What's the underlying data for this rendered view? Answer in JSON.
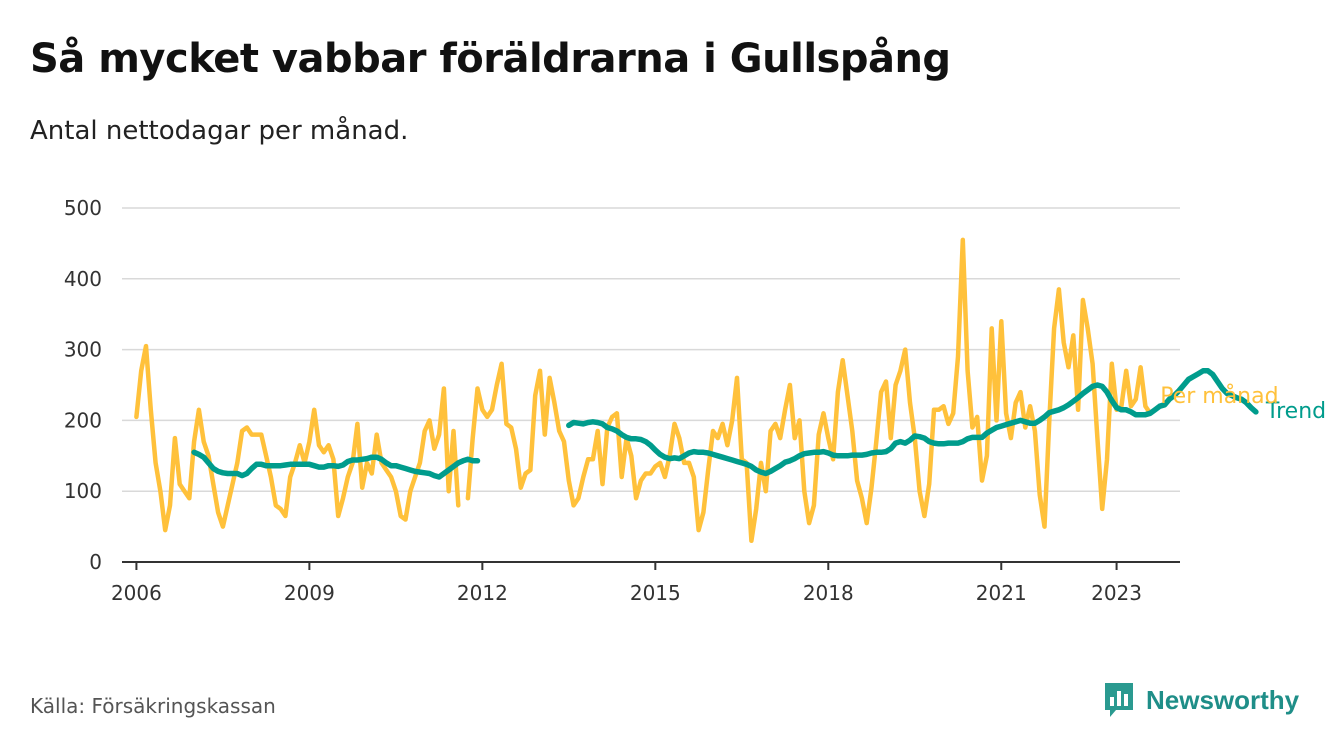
{
  "header": {
    "title": "Så mycket vabbar föräldrarna i Gullspång",
    "subtitle": "Antal nettodagar per månad."
  },
  "footer": {
    "source": "Källa: Försäkringskassan",
    "brand": "Newsworthy",
    "brand_icon": "newsworthy-chart-logo-icon"
  },
  "colors": {
    "per_month": "#ffc13b",
    "trend": "#009c8c",
    "grid": "#d9d9d9",
    "axis": "#333333",
    "brand": "#1f8e88"
  },
  "chart_data": {
    "type": "line",
    "title": "Så mycket vabbar föräldrarna i Gullspång",
    "subtitle": "Antal nettodagar per månad.",
    "xlabel": "",
    "ylabel": "",
    "xlim": [
      2005.75,
      2024.1
    ],
    "ylim": [
      0,
      500
    ],
    "y_ticks": [
      0,
      100,
      200,
      300,
      400,
      500
    ],
    "x_ticks": [
      2006,
      2009,
      2012,
      2015,
      2018,
      2021,
      2023
    ],
    "x_tick_labels": [
      "2006",
      "2009",
      "2012",
      "2015",
      "2018",
      "2021",
      "2023"
    ],
    "grid": true,
    "legend_placement": "inline-right",
    "series": [
      {
        "name": "Per månad",
        "color": "#ffc13b",
        "x_start": 2006.0,
        "step_months": 1,
        "values": [
          205,
          270,
          305,
          215,
          140,
          100,
          45,
          80,
          175,
          110,
          100,
          90,
          170,
          215,
          170,
          150,
          110,
          70,
          50,
          80,
          110,
          140,
          185,
          190,
          180,
          180,
          180,
          150,
          120,
          80,
          75,
          65,
          120,
          140,
          165,
          140,
          170,
          215,
          165,
          155,
          165,
          145,
          65,
          90,
          120,
          140,
          195,
          105,
          140,
          125,
          180,
          140,
          130,
          120,
          100,
          65,
          60,
          100,
          120,
          140,
          185,
          200,
          160,
          180,
          245,
          100,
          185,
          80,
          null,
          90,
          175,
          245,
          215,
          205,
          215,
          250,
          280,
          195,
          190,
          160,
          105,
          125,
          130,
          235,
          270,
          180,
          260,
          225,
          185,
          170,
          115,
          80,
          90,
          120,
          145,
          145,
          185,
          110,
          190,
          205,
          210,
          120,
          175,
          150,
          90,
          115,
          125,
          125,
          135,
          140,
          120,
          150,
          195,
          175,
          140,
          140,
          120,
          45,
          70,
          130,
          185,
          175,
          195,
          165,
          200,
          260,
          145,
          140,
          30,
          75,
          140,
          100,
          185,
          195,
          175,
          215,
          250,
          175,
          200,
          100,
          55,
          80,
          180,
          210,
          175,
          145,
          240,
          285,
          235,
          185,
          115,
          90,
          55,
          105,
          170,
          240,
          255,
          175,
          250,
          270,
          300,
          225,
          175,
          100,
          65,
          110,
          215,
          215,
          220,
          195,
          210,
          290,
          455,
          270,
          190,
          205,
          115,
          150,
          330,
          200,
          340,
          210,
          175,
          225,
          240,
          190,
          220,
          185,
          95,
          50,
          200,
          330,
          385,
          310,
          275,
          320,
          215,
          370,
          330,
          280,
          175,
          75,
          145,
          280,
          215,
          220,
          270,
          220,
          230,
          275,
          220,
          210
        ]
      },
      {
        "name": "Trend",
        "color": "#009c8c",
        "x_start": 2007.0,
        "step_months": 1,
        "values": [
          155,
          152,
          148,
          140,
          132,
          128,
          126,
          125,
          125,
          125,
          122,
          125,
          132,
          138,
          138,
          136,
          136,
          136,
          136,
          137,
          138,
          138,
          138,
          138,
          138,
          136,
          134,
          134,
          136,
          136,
          135,
          137,
          142,
          144,
          144,
          145,
          146,
          148,
          148,
          145,
          140,
          136,
          136,
          134,
          132,
          130,
          128,
          127,
          126,
          125,
          122,
          120,
          125,
          130,
          135,
          140,
          143,
          145,
          143,
          143,
          null,
          null,
          null,
          null,
          null,
          null,
          null,
          null,
          null,
          null,
          null,
          null,
          null,
          null,
          null,
          null,
          null,
          null,
          193,
          197,
          196,
          195,
          197,
          198,
          197,
          195,
          190,
          188,
          185,
          180,
          176,
          174,
          174,
          173,
          170,
          165,
          158,
          152,
          148,
          146,
          147,
          146,
          150,
          154,
          156,
          155,
          155,
          154,
          152,
          150,
          148,
          146,
          144,
          142,
          140,
          138,
          135,
          130,
          127,
          125,
          128,
          132,
          136,
          141,
          143,
          146,
          150,
          153,
          154,
          155,
          155,
          156,
          154,
          151,
          150,
          150,
          150,
          151,
          151,
          151,
          152,
          154,
          155,
          155,
          156,
          160,
          168,
          170,
          168,
          172,
          178,
          177,
          175,
          170,
          168,
          167,
          167,
          168,
          168,
          168,
          170,
          174,
          176,
          176,
          176,
          182,
          186,
          190,
          192,
          194,
          196,
          198,
          200,
          198,
          196,
          196,
          200,
          205,
          211,
          213,
          215,
          218,
          222,
          227,
          232,
          238,
          243,
          248,
          250,
          248,
          240,
          228,
          218,
          215,
          215,
          212,
          208,
          208,
          208,
          210,
          215,
          220,
          222,
          230,
          235,
          242,
          250,
          258,
          262,
          266,
          270,
          270,
          265,
          255,
          245,
          238,
          235,
          232,
          230,
          225,
          218,
          212
        ]
      }
    ]
  }
}
